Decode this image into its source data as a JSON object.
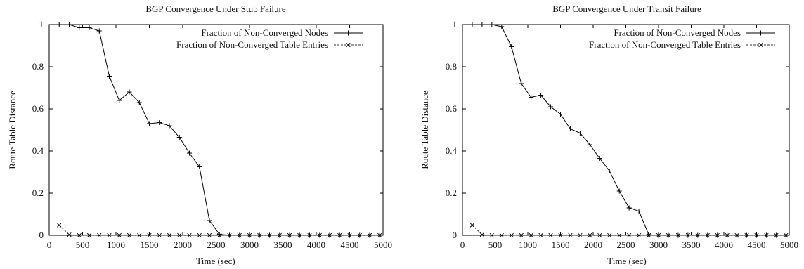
{
  "chart_data": [
    {
      "type": "line",
      "title": "BGP Convergence Under Stub Failure",
      "xlabel": "Time (sec)",
      "ylabel": "Route Table Distance",
      "xlim": [
        0,
        5000
      ],
      "ylim": [
        0,
        1
      ],
      "xticks": [
        0,
        500,
        1000,
        1500,
        2000,
        2500,
        3000,
        3500,
        4000,
        4500,
        5000
      ],
      "yticks": [
        0,
        0.2,
        0.4,
        0.6,
        0.8,
        1
      ],
      "legend_position": "top-right",
      "grid": false,
      "series": [
        {
          "name": "Fraction of Non-Converged Nodes",
          "marker": "plus",
          "dash": false,
          "points": [
            [
              150,
              1
            ],
            [
              300,
              1
            ],
            [
              450,
              0.985
            ],
            [
              600,
              0.985
            ],
            [
              750,
              0.97
            ],
            [
              900,
              0.755
            ],
            [
              1050,
              0.64
            ],
            [
              1200,
              0.68
            ],
            [
              1350,
              0.63
            ],
            [
              1500,
              0.53
            ],
            [
              1650,
              0.535
            ],
            [
              1800,
              0.52
            ],
            [
              1950,
              0.465
            ],
            [
              2100,
              0.39
            ],
            [
              2250,
              0.325
            ],
            [
              2400,
              0.07
            ],
            [
              2550,
              0.005
            ],
            [
              2700,
              0
            ],
            [
              2850,
              0
            ],
            [
              3000,
              0
            ],
            [
              3150,
              0
            ],
            [
              3300,
              0
            ],
            [
              3450,
              0
            ],
            [
              3600,
              0
            ],
            [
              3750,
              0
            ],
            [
              3900,
              0
            ],
            [
              4050,
              0
            ],
            [
              4200,
              0
            ],
            [
              4350,
              0
            ],
            [
              4500,
              0
            ],
            [
              4650,
              0
            ],
            [
              4800,
              0
            ],
            [
              4950,
              0
            ]
          ]
        },
        {
          "name": "Fraction of Non-Converged Table Entries",
          "marker": "cross",
          "dash": true,
          "points": [
            [
              150,
              0.048
            ],
            [
              300,
              0.003
            ],
            [
              450,
              0
            ],
            [
              600,
              0
            ],
            [
              750,
              0
            ],
            [
              900,
              0
            ],
            [
              1050,
              0
            ],
            [
              1200,
              0
            ],
            [
              1350,
              0
            ],
            [
              1500,
              0
            ],
            [
              1650,
              0
            ],
            [
              1800,
              0
            ],
            [
              1950,
              0
            ],
            [
              2100,
              0
            ],
            [
              2250,
              0
            ],
            [
              2400,
              0
            ],
            [
              2550,
              0
            ],
            [
              2700,
              0
            ],
            [
              2850,
              0
            ],
            [
              3000,
              0
            ],
            [
              3150,
              0
            ],
            [
              3300,
              0
            ],
            [
              3450,
              0
            ],
            [
              3600,
              0
            ],
            [
              3750,
              0
            ],
            [
              3900,
              0
            ],
            [
              4050,
              0
            ],
            [
              4200,
              0
            ],
            [
              4350,
              0
            ],
            [
              4500,
              0
            ],
            [
              4650,
              0
            ],
            [
              4800,
              0
            ],
            [
              4950,
              0
            ]
          ]
        }
      ]
    },
    {
      "type": "line",
      "title": "BGP Convergence Under Transit Failure",
      "xlabel": "Time (sec)",
      "ylabel": "Route Table Distance",
      "xlim": [
        0,
        5000
      ],
      "ylim": [
        0,
        1
      ],
      "xticks": [
        0,
        500,
        1000,
        1500,
        2000,
        2500,
        3000,
        3500,
        4000,
        4500,
        5000
      ],
      "yticks": [
        0,
        0.2,
        0.4,
        0.6,
        0.8,
        1
      ],
      "legend_position": "top-right",
      "grid": false,
      "series": [
        {
          "name": "Fraction of Non-Converged Nodes",
          "marker": "plus",
          "dash": false,
          "points": [
            [
              150,
              1
            ],
            [
              300,
              1
            ],
            [
              450,
              1
            ],
            [
              600,
              0.99
            ],
            [
              750,
              0.895
            ],
            [
              900,
              0.72
            ],
            [
              1050,
              0.655
            ],
            [
              1200,
              0.665
            ],
            [
              1350,
              0.61
            ],
            [
              1500,
              0.575
            ],
            [
              1650,
              0.505
            ],
            [
              1800,
              0.485
            ],
            [
              1950,
              0.43
            ],
            [
              2100,
              0.365
            ],
            [
              2250,
              0.305
            ],
            [
              2400,
              0.21
            ],
            [
              2550,
              0.13
            ],
            [
              2700,
              0.115
            ],
            [
              2850,
              0.003
            ],
            [
              3000,
              0
            ],
            [
              3150,
              0
            ],
            [
              3300,
              0
            ],
            [
              3450,
              0
            ],
            [
              3600,
              0
            ],
            [
              3750,
              0
            ],
            [
              3900,
              0
            ],
            [
              4050,
              0
            ],
            [
              4200,
              0
            ],
            [
              4350,
              0
            ],
            [
              4500,
              0
            ],
            [
              4650,
              0
            ],
            [
              4800,
              0
            ],
            [
              4950,
              0
            ]
          ]
        },
        {
          "name": "Fraction of Non-Converged Table Entries",
          "marker": "cross",
          "dash": true,
          "points": [
            [
              150,
              0.048
            ],
            [
              300,
              0.003
            ],
            [
              450,
              0
            ],
            [
              600,
              0
            ],
            [
              750,
              0
            ],
            [
              900,
              0
            ],
            [
              1050,
              0
            ],
            [
              1200,
              0
            ],
            [
              1350,
              0
            ],
            [
              1500,
              0
            ],
            [
              1650,
              0
            ],
            [
              1800,
              0
            ],
            [
              1950,
              0
            ],
            [
              2100,
              0
            ],
            [
              2250,
              0
            ],
            [
              2400,
              0
            ],
            [
              2550,
              0
            ],
            [
              2700,
              0
            ],
            [
              2850,
              0
            ],
            [
              3000,
              0
            ],
            [
              3150,
              0
            ],
            [
              3300,
              0
            ],
            [
              3450,
              0
            ],
            [
              3600,
              0
            ],
            [
              3750,
              0
            ],
            [
              3900,
              0
            ],
            [
              4050,
              0
            ],
            [
              4200,
              0
            ],
            [
              4350,
              0
            ],
            [
              4500,
              0
            ],
            [
              4650,
              0
            ],
            [
              4800,
              0
            ],
            [
              4950,
              0
            ]
          ]
        }
      ]
    }
  ]
}
